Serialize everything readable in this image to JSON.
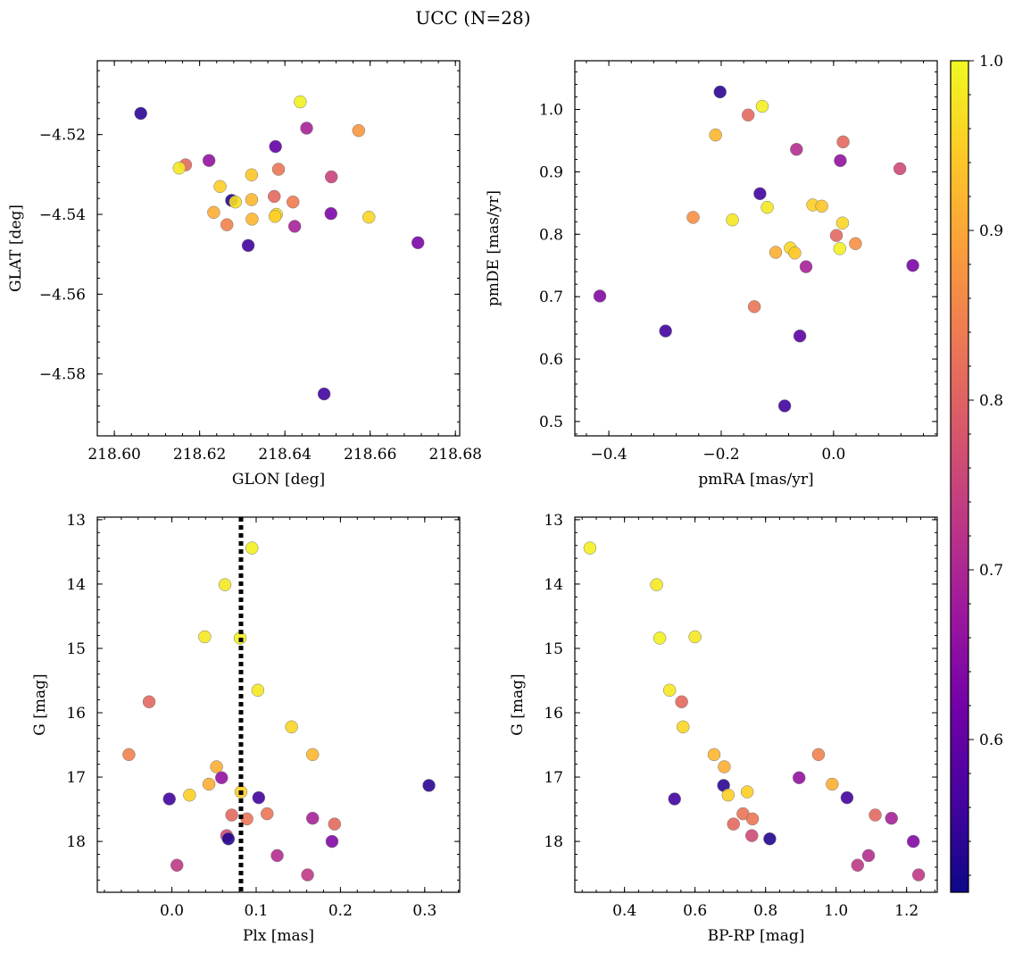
{
  "figure": {
    "title": "UCC (N=28)"
  },
  "colorbar": {
    "ticks": [
      0.6,
      0.7,
      0.8,
      0.9,
      1.0
    ],
    "tick_labels": [
      "0.6",
      "0.7",
      "0.8",
      "0.9",
      "1.0"
    ],
    "range": [
      0.51,
      1.0
    ],
    "colormap": [
      "#0d0887",
      "#46039f",
      "#7201a8",
      "#9c179e",
      "#bd3786",
      "#d8576b",
      "#ed7953",
      "#fb9f3a",
      "#fdca26",
      "#f0f921"
    ]
  },
  "chart_data": [
    {
      "type": "scatter",
      "xlabel": "GLON [deg]",
      "ylabel": "GLAT [deg]",
      "xlim": [
        218.596,
        218.681
      ],
      "ylim": [
        -4.5955,
        -4.5015
      ],
      "xticks": [
        218.6,
        218.62,
        218.64,
        218.66,
        218.68
      ],
      "xtick_labels": [
        "218.60",
        "218.62",
        "218.64",
        "218.66",
        "218.68"
      ],
      "yticks": [
        -4.52,
        -4.54,
        -4.56,
        -4.58
      ],
      "ytick_labels": [
        "−4.52",
        "−4.54",
        "−4.56",
        "−4.58"
      ],
      "points": [
        {
          "x": 218.6062,
          "y": -4.5147,
          "c": 0.54
        },
        {
          "x": 218.6436,
          "y": -4.5118,
          "c": 0.99
        },
        {
          "x": 218.6451,
          "y": -4.5184,
          "c": 0.69
        },
        {
          "x": 218.6573,
          "y": -4.519,
          "c": 0.88
        },
        {
          "x": 218.6378,
          "y": -4.523,
          "c": 0.6
        },
        {
          "x": 218.6222,
          "y": -4.5265,
          "c": 0.66
        },
        {
          "x": 218.6167,
          "y": -4.5276,
          "c": 0.81
        },
        {
          "x": 218.6152,
          "y": -4.5284,
          "c": 0.98
        },
        {
          "x": 218.6385,
          "y": -4.5287,
          "c": 0.83
        },
        {
          "x": 218.6322,
          "y": -4.5301,
          "c": 0.94
        },
        {
          "x": 218.6509,
          "y": -4.5306,
          "c": 0.75
        },
        {
          "x": 218.6248,
          "y": -4.533,
          "c": 0.95
        },
        {
          "x": 218.6375,
          "y": -4.5355,
          "c": 0.81
        },
        {
          "x": 218.6322,
          "y": -4.5363,
          "c": 0.92
        },
        {
          "x": 218.6275,
          "y": -4.5365,
          "c": 0.53
        },
        {
          "x": 218.6284,
          "y": -4.5369,
          "c": 0.97
        },
        {
          "x": 218.6419,
          "y": -4.5369,
          "c": 0.84
        },
        {
          "x": 218.6233,
          "y": -4.5395,
          "c": 0.91
        },
        {
          "x": 218.6508,
          "y": -4.5398,
          "c": 0.63
        },
        {
          "x": 218.638,
          "y": -4.54,
          "c": 0.97
        },
        {
          "x": 218.6377,
          "y": -4.5405,
          "c": 0.95
        },
        {
          "x": 218.6597,
          "y": -4.5407,
          "c": 0.96
        },
        {
          "x": 218.6323,
          "y": -4.5412,
          "c": 0.92
        },
        {
          "x": 218.6264,
          "y": -4.5426,
          "c": 0.85
        },
        {
          "x": 218.6423,
          "y": -4.543,
          "c": 0.69
        },
        {
          "x": 218.6712,
          "y": -4.5471,
          "c": 0.63
        },
        {
          "x": 218.6314,
          "y": -4.5478,
          "c": 0.56
        },
        {
          "x": 218.6492,
          "y": -4.585,
          "c": 0.56
        }
      ]
    },
    {
      "type": "scatter",
      "xlabel": "pmRA [mas/yr]",
      "ylabel": "pmDE [mas/yr]",
      "xlim": [
        -0.4605,
        0.1845
      ],
      "ylim": [
        0.477,
        1.078
      ],
      "xticks": [
        -0.4,
        -0.2,
        0.0
      ],
      "xtick_labels": [
        "−0.4",
        "−0.2",
        "0.0"
      ],
      "yticks": [
        0.5,
        0.6,
        0.7,
        0.8,
        0.9,
        1.0
      ],
      "ytick_labels": [
        "0.5",
        "0.6",
        "0.7",
        "0.8",
        "0.9",
        "1.0"
      ],
      "points": [
        {
          "x": -0.202,
          "y": 1.028,
          "c": 0.54
        },
        {
          "x": -0.127,
          "y": 1.005,
          "c": 0.99
        },
        {
          "x": -0.152,
          "y": 0.991,
          "c": 0.81
        },
        {
          "x": -0.21,
          "y": 0.959,
          "c": 0.92
        },
        {
          "x": 0.017,
          "y": 0.948,
          "c": 0.81
        },
        {
          "x": -0.066,
          "y": 0.936,
          "c": 0.71
        },
        {
          "x": 0.012,
          "y": 0.918,
          "c": 0.66
        },
        {
          "x": 0.118,
          "y": 0.905,
          "c": 0.76
        },
        {
          "x": -0.131,
          "y": 0.865,
          "c": 0.56
        },
        {
          "x": -0.037,
          "y": 0.847,
          "c": 0.95
        },
        {
          "x": -0.021,
          "y": 0.845,
          "c": 0.94
        },
        {
          "x": -0.118,
          "y": 0.843,
          "c": 0.98
        },
        {
          "x": -0.25,
          "y": 0.827,
          "c": 0.87
        },
        {
          "x": -0.18,
          "y": 0.823,
          "c": 0.98
        },
        {
          "x": 0.016,
          "y": 0.818,
          "c": 0.96
        },
        {
          "x": 0.005,
          "y": 0.798,
          "c": 0.81
        },
        {
          "x": 0.039,
          "y": 0.785,
          "c": 0.87
        },
        {
          "x": -0.077,
          "y": 0.778,
          "c": 0.96
        },
        {
          "x": 0.011,
          "y": 0.777,
          "c": 0.99
        },
        {
          "x": -0.103,
          "y": 0.771,
          "c": 0.91
        },
        {
          "x": -0.069,
          "y": 0.77,
          "c": 0.94
        },
        {
          "x": 0.141,
          "y": 0.75,
          "c": 0.63
        },
        {
          "x": -0.049,
          "y": 0.748,
          "c": 0.69
        },
        {
          "x": -0.416,
          "y": 0.701,
          "c": 0.64
        },
        {
          "x": -0.141,
          "y": 0.684,
          "c": 0.83
        },
        {
          "x": -0.299,
          "y": 0.645,
          "c": 0.56
        },
        {
          "x": -0.06,
          "y": 0.637,
          "c": 0.59
        },
        {
          "x": -0.087,
          "y": 0.525,
          "c": 0.56
        }
      ]
    },
    {
      "type": "scatter",
      "xlabel": "Plx [mas]",
      "ylabel": "G [mag]",
      "xlim": [
        -0.0885,
        0.3415
      ],
      "ylim": [
        18.79,
        12.96
      ],
      "xticks": [
        0.0,
        0.1,
        0.2,
        0.3
      ],
      "xtick_labels": [
        "0.0",
        "0.1",
        "0.2",
        "0.3"
      ],
      "yticks": [
        13,
        14,
        15,
        16,
        17,
        18
      ],
      "ytick_labels": [
        "13",
        "14",
        "15",
        "16",
        "17",
        "18"
      ],
      "vline": {
        "x": 0.082,
        "style": "dotted",
        "color": "#000000"
      },
      "points": [
        {
          "x": 0.095,
          "y": 13.44,
          "c": 0.99
        },
        {
          "x": 0.063,
          "y": 14.01,
          "c": 0.98
        },
        {
          "x": 0.039,
          "y": 14.82,
          "c": 0.98
        },
        {
          "x": 0.081,
          "y": 14.84,
          "c": 0.99
        },
        {
          "x": 0.102,
          "y": 15.65,
          "c": 0.98
        },
        {
          "x": -0.027,
          "y": 15.83,
          "c": 0.81
        },
        {
          "x": 0.142,
          "y": 16.22,
          "c": 0.96
        },
        {
          "x": -0.051,
          "y": 16.65,
          "c": 0.85
        },
        {
          "x": 0.167,
          "y": 16.65,
          "c": 0.92
        },
        {
          "x": 0.053,
          "y": 16.84,
          "c": 0.91
        },
        {
          "x": 0.059,
          "y": 17.01,
          "c": 0.66
        },
        {
          "x": 0.044,
          "y": 17.11,
          "c": 0.91
        },
        {
          "x": 0.305,
          "y": 17.13,
          "c": 0.54
        },
        {
          "x": 0.082,
          "y": 17.23,
          "c": 0.95
        },
        {
          "x": 0.021,
          "y": 17.28,
          "c": 0.95
        },
        {
          "x": 0.103,
          "y": 17.32,
          "c": 0.56
        },
        {
          "x": -0.003,
          "y": 17.34,
          "c": 0.56
        },
        {
          "x": 0.113,
          "y": 17.57,
          "c": 0.83
        },
        {
          "x": 0.071,
          "y": 17.59,
          "c": 0.81
        },
        {
          "x": 0.167,
          "y": 17.64,
          "c": 0.69
        },
        {
          "x": 0.089,
          "y": 17.65,
          "c": 0.83
        },
        {
          "x": 0.193,
          "y": 17.73,
          "c": 0.81
        },
        {
          "x": 0.065,
          "y": 17.91,
          "c": 0.76
        },
        {
          "x": 0.067,
          "y": 17.96,
          "c": 0.53
        },
        {
          "x": 0.19,
          "y": 18.0,
          "c": 0.64
        },
        {
          "x": 0.125,
          "y": 18.22,
          "c": 0.71
        },
        {
          "x": 0.006,
          "y": 18.37,
          "c": 0.73
        },
        {
          "x": 0.161,
          "y": 18.52,
          "c": 0.73
        }
      ]
    },
    {
      "type": "scatter",
      "xlabel": "BP-RP [mag]",
      "ylabel": "G [mag]",
      "xlim": [
        0.2592,
        1.2868
      ],
      "ylim": [
        18.79,
        12.96
      ],
      "xticks": [
        0.4,
        0.6,
        0.8,
        1.0,
        1.2
      ],
      "xtick_labels": [
        "0.4",
        "0.6",
        "0.8",
        "1.0",
        "1.2"
      ],
      "yticks": [
        13,
        14,
        15,
        16,
        17,
        18
      ],
      "ytick_labels": [
        "13",
        "14",
        "15",
        "16",
        "17",
        "18"
      ],
      "points": [
        {
          "x": 0.302,
          "y": 13.44,
          "c": 0.99
        },
        {
          "x": 0.491,
          "y": 14.01,
          "c": 0.98
        },
        {
          "x": 0.5,
          "y": 14.84,
          "c": 0.99
        },
        {
          "x": 0.6,
          "y": 14.82,
          "c": 0.98
        },
        {
          "x": 0.528,
          "y": 15.65,
          "c": 0.98
        },
        {
          "x": 0.562,
          "y": 15.83,
          "c": 0.81
        },
        {
          "x": 0.566,
          "y": 16.22,
          "c": 0.96
        },
        {
          "x": 0.654,
          "y": 16.65,
          "c": 0.92
        },
        {
          "x": 0.95,
          "y": 16.65,
          "c": 0.85
        },
        {
          "x": 0.683,
          "y": 16.84,
          "c": 0.91
        },
        {
          "x": 0.895,
          "y": 17.01,
          "c": 0.66
        },
        {
          "x": 0.989,
          "y": 17.11,
          "c": 0.91
        },
        {
          "x": 0.681,
          "y": 17.13,
          "c": 0.54
        },
        {
          "x": 0.748,
          "y": 17.23,
          "c": 0.95
        },
        {
          "x": 0.694,
          "y": 17.28,
          "c": 0.95
        },
        {
          "x": 1.031,
          "y": 17.32,
          "c": 0.56
        },
        {
          "x": 0.542,
          "y": 17.34,
          "c": 0.56
        },
        {
          "x": 0.736,
          "y": 17.57,
          "c": 0.83
        },
        {
          "x": 1.111,
          "y": 17.59,
          "c": 0.81
        },
        {
          "x": 1.157,
          "y": 17.64,
          "c": 0.69
        },
        {
          "x": 0.763,
          "y": 17.65,
          "c": 0.83
        },
        {
          "x": 0.709,
          "y": 17.73,
          "c": 0.81
        },
        {
          "x": 0.761,
          "y": 17.91,
          "c": 0.76
        },
        {
          "x": 0.812,
          "y": 17.96,
          "c": 0.53
        },
        {
          "x": 1.219,
          "y": 18.0,
          "c": 0.64
        },
        {
          "x": 1.092,
          "y": 18.22,
          "c": 0.71
        },
        {
          "x": 1.061,
          "y": 18.37,
          "c": 0.73
        },
        {
          "x": 1.234,
          "y": 18.52,
          "c": 0.73
        }
      ]
    }
  ]
}
